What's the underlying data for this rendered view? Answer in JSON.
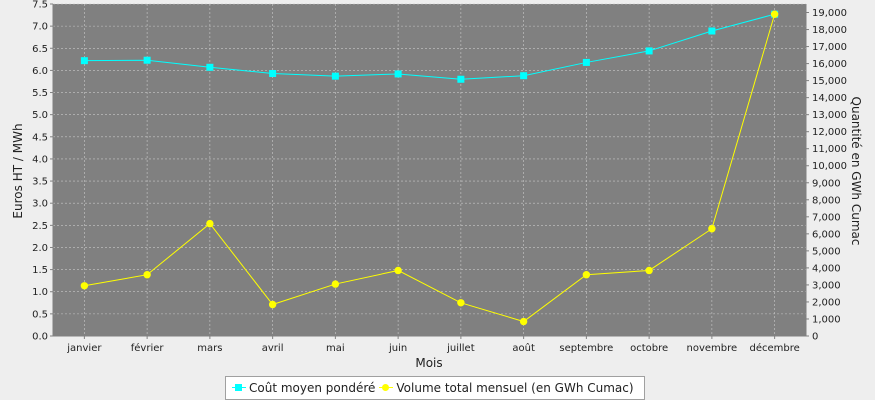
{
  "chart_data": {
    "type": "line",
    "categories": [
      "janvier",
      "février",
      "mars",
      "avril",
      "mai",
      "juin",
      "juillet",
      "août",
      "septembre",
      "octobre",
      "novembre",
      "décembre"
    ],
    "xlabel": "Mois",
    "ylabel": "Euros HT / MWh",
    "y2label": "Quantité en GWh Cumac",
    "ylim": [
      0,
      7.5
    ],
    "yticks": [
      0.0,
      0.5,
      1.0,
      1.5,
      2.0,
      2.5,
      3.0,
      3.5,
      4.0,
      4.5,
      5.0,
      5.5,
      6.0,
      6.5,
      7.0,
      7.5
    ],
    "y2lim": [
      0,
      19500
    ],
    "y2ticks": [
      0,
      1000,
      2000,
      3000,
      4000,
      5000,
      6000,
      7000,
      8000,
      9000,
      10000,
      11000,
      12000,
      13000,
      14000,
      15000,
      16000,
      17000,
      18000,
      19000
    ],
    "grid": true,
    "legend_position": "bottom",
    "series": [
      {
        "name": "Coût moyen pondéré",
        "axis": "left",
        "color": "#00ffff",
        "marker": "square",
        "values": [
          6.22,
          6.23,
          6.07,
          5.93,
          5.87,
          5.92,
          5.8,
          5.88,
          6.18,
          6.44,
          6.89,
          7.27
        ]
      },
      {
        "name": "Volume total mensuel (en GWh Cumac)",
        "axis": "right",
        "color": "#ffff00",
        "marker": "circle",
        "values": [
          2950,
          3600,
          6600,
          1850,
          3050,
          3850,
          1950,
          850,
          3600,
          3850,
          6300,
          18900
        ]
      }
    ]
  }
}
